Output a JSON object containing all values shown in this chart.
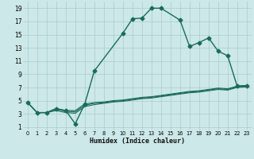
{
  "xlabel": "Humidex (Indice chaleur)",
  "bg_color": "#cce8e8",
  "grid_color": "#aacccc",
  "line_color": "#1a6b5a",
  "xlim": [
    -0.5,
    23.5
  ],
  "ylim": [
    0.5,
    20
  ],
  "yticks": [
    1,
    3,
    5,
    7,
    9,
    11,
    13,
    15,
    17,
    19
  ],
  "xticks": [
    0,
    1,
    2,
    3,
    4,
    5,
    6,
    7,
    8,
    9,
    10,
    11,
    12,
    13,
    14,
    15,
    16,
    17,
    18,
    19,
    20,
    21,
    22,
    23
  ],
  "series": [
    {
      "x": [
        0,
        1,
        2,
        3,
        4,
        5,
        6,
        7,
        10,
        11,
        12,
        13,
        14,
        16,
        17,
        18,
        19,
        20,
        21,
        22,
        23
      ],
      "y": [
        4.7,
        3.2,
        3.2,
        3.8,
        3.5,
        1.5,
        4.5,
        9.5,
        15.2,
        17.4,
        17.5,
        19.0,
        19.0,
        17.2,
        13.2,
        13.8,
        14.5,
        12.5,
        11.8,
        7.2,
        7.3
      ],
      "marker": "D",
      "ms": 2.5,
      "lw": 1.0
    },
    {
      "x": [
        0,
        1,
        2,
        3,
        4,
        5,
        6,
        7,
        8,
        9,
        10,
        11,
        12,
        13,
        14,
        15,
        16,
        17,
        18,
        19,
        20,
        21,
        22,
        23
      ],
      "y": [
        4.7,
        3.2,
        3.2,
        3.8,
        3.5,
        3.5,
        4.5,
        4.7,
        4.8,
        5.0,
        5.1,
        5.3,
        5.5,
        5.6,
        5.8,
        6.0,
        6.2,
        6.4,
        6.5,
        6.7,
        6.9,
        6.8,
        7.2,
        7.3
      ],
      "marker": null,
      "ms": 0,
      "lw": 0.8
    },
    {
      "x": [
        0,
        1,
        2,
        3,
        4,
        5,
        6,
        7,
        8,
        9,
        10,
        11,
        12,
        13,
        14,
        15,
        16,
        17,
        18,
        19,
        20,
        21,
        22,
        23
      ],
      "y": [
        4.7,
        3.2,
        3.2,
        3.7,
        3.4,
        3.3,
        4.3,
        4.6,
        4.7,
        4.9,
        5.0,
        5.2,
        5.4,
        5.5,
        5.7,
        5.9,
        6.1,
        6.3,
        6.4,
        6.6,
        6.8,
        6.7,
        7.1,
        7.2
      ],
      "marker": null,
      "ms": 0,
      "lw": 0.8
    },
    {
      "x": [
        0,
        1,
        2,
        3,
        4,
        5,
        6,
        7,
        8,
        9,
        10,
        11,
        12,
        13,
        14,
        15,
        16,
        17,
        18,
        19,
        20,
        21,
        22,
        23
      ],
      "y": [
        4.7,
        3.2,
        3.2,
        3.5,
        3.2,
        3.1,
        4.1,
        4.4,
        4.6,
        4.8,
        4.9,
        5.1,
        5.3,
        5.4,
        5.6,
        5.8,
        6.0,
        6.2,
        6.3,
        6.5,
        6.7,
        6.6,
        7.0,
        7.1
      ],
      "marker": null,
      "ms": 0,
      "lw": 0.8
    }
  ]
}
